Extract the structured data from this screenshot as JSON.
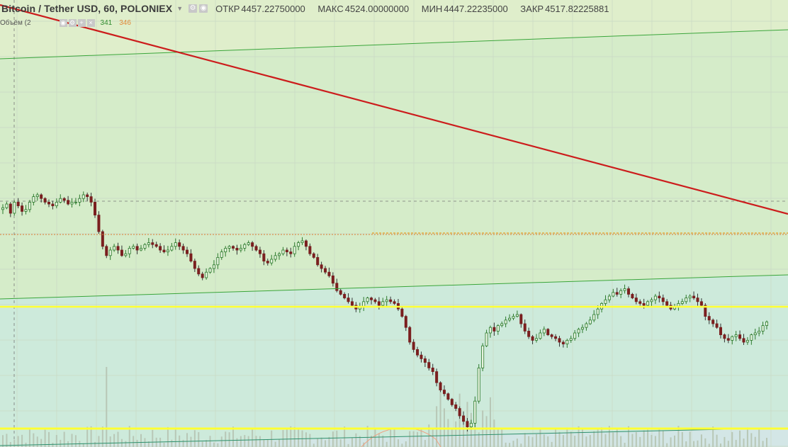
{
  "header": {
    "symbol": "Bitcoin / Tether USD, 60, POLONIEX",
    "open_label": "ОТКР",
    "open_value": "4457.22750000",
    "high_label": "МАКС",
    "high_value": "4524.00000000",
    "low_label": "МИН",
    "low_value": "4447.22235000",
    "close_label": "ЗАКР",
    "close_value": "4517.82225881"
  },
  "volume_indicator": {
    "label": "Объём (2",
    "value_1": "341",
    "value_2": "346"
  },
  "colors": {
    "upper_zone": "#d5ecc9",
    "lower_zone": "#cdeadb",
    "bottom_zone": "#d3e6e6",
    "trend_line": "#cc1c1c",
    "channel_line": "#3aa53a",
    "support_line": "#ffff33",
    "level_line": "#e08030",
    "candle_body": "#7a1f1f",
    "candle_up_wick": "#2c7a2c",
    "volume_bar": "#b8c7b6",
    "grid": "#c9d8c4"
  },
  "chart_data": {
    "type": "candlestick",
    "series_name": "BTC/USDT",
    "close": [
      4585,
      4595,
      4570,
      4600,
      4590,
      4575,
      4580,
      4600,
      4615,
      4620,
      4610,
      4600,
      4595,
      4590,
      4600,
      4610,
      4605,
      4595,
      4600,
      4600,
      4610,
      4620,
      4615,
      4600,
      4565,
      4520,
      4480,
      4455,
      4470,
      4480,
      4470,
      4455,
      4460,
      4475,
      4480,
      4470,
      4475,
      4485,
      4490,
      4485,
      4480,
      4470,
      4465,
      4470,
      4480,
      4490,
      4480,
      4470,
      4460,
      4440,
      4420,
      4405,
      4395,
      4410,
      4420,
      4430,
      4450,
      4465,
      4475,
      4480,
      4475,
      4470,
      4475,
      4485,
      4490,
      4480,
      4470,
      4460,
      4440,
      4435,
      4445,
      4455,
      4460,
      4470,
      4465,
      4460,
      4480,
      4490,
      4495,
      4480,
      4460,
      4450,
      4430,
      4420,
      4410,
      4400,
      4380,
      4360,
      4350,
      4340,
      4330,
      4320,
      4310,
      4315,
      4330,
      4340,
      4335,
      4330,
      4320,
      4330,
      4335,
      4330,
      4325,
      4310,
      4290,
      4260,
      4220,
      4200,
      4185,
      4175,
      4165,
      4150,
      4140,
      4110,
      4090,
      4080,
      4065,
      4050,
      4040,
      4020,
      4005,
      3990,
      4000,
      4060,
      4150,
      4210,
      4245,
      4260,
      4250,
      4265,
      4270,
      4280,
      4285,
      4290,
      4295,
      4270,
      4250,
      4235,
      4225,
      4230,
      4245,
      4255,
      4240,
      4235,
      4230,
      4220,
      4215,
      4225,
      4230,
      4245,
      4255,
      4260,
      4270,
      4280,
      4295,
      4310,
      4325,
      4335,
      4345,
      4355,
      4350,
      4360,
      4365,
      4350,
      4340,
      4330,
      4325,
      4320,
      4330,
      4335,
      4345,
      4340,
      4330,
      4320,
      4310,
      4315,
      4325,
      4330,
      4340,
      4345,
      4340,
      4330,
      4320,
      4290,
      4280,
      4270,
      4260,
      4240,
      4230,
      4225,
      4235,
      4240,
      4230,
      4220,
      4225,
      4240,
      4245,
      4250,
      4265,
      4275
    ]
  }
}
